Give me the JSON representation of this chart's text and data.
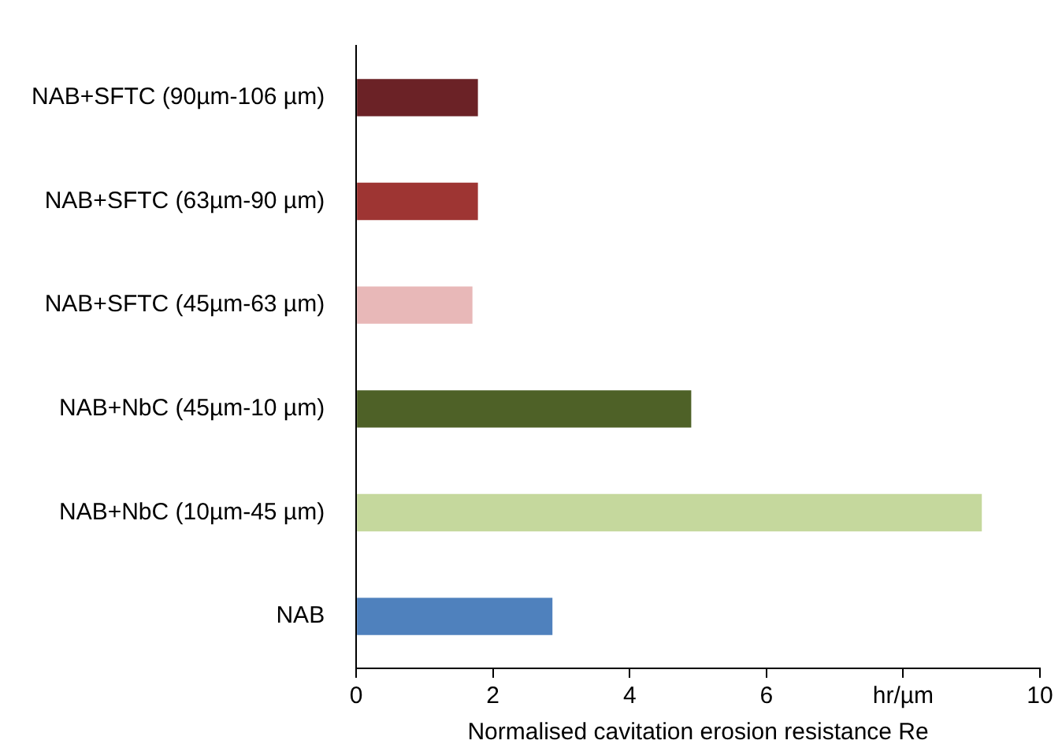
{
  "chart_data": {
    "type": "bar",
    "orientation": "horizontal",
    "xlabel": "Normalised cavitation erosion resistance Re",
    "categories": [
      "NAB+SFTC (90µm-106 µm)",
      "NAB+SFTC (63µm-90 µm)",
      "NAB+SFTC (45µm-63 µm)",
      "NAB+NbC (45µm-10 µm)",
      "NAB+NbC (10µm-45 µm)",
      "NAB"
    ],
    "values": [
      1.78,
      1.78,
      1.7,
      4.9,
      9.15,
      2.87
    ],
    "colors": [
      "#6b2226",
      "#9e3533",
      "#e8b8b8",
      "#4e6127",
      "#c5d89d",
      "#4f81bd"
    ],
    "xlim": [
      0,
      10
    ],
    "xticks": [
      0,
      2,
      4,
      6,
      {
        "value": 8,
        "label": "hr/µm"
      },
      10
    ],
    "grid": false,
    "legend": false
  }
}
